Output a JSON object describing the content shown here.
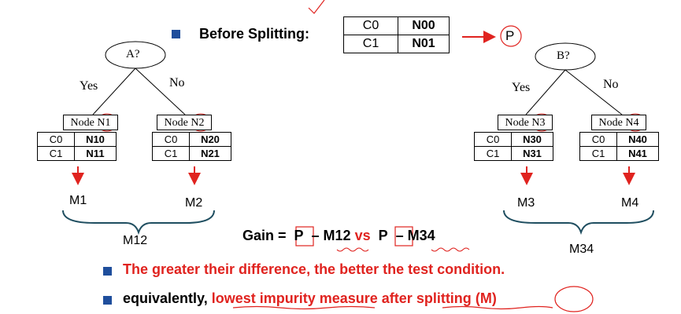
{
  "before": {
    "label": "Before Splitting:",
    "table": [
      [
        "C0",
        "N00"
      ],
      [
        "C1",
        "N01"
      ]
    ],
    "parent": "P"
  },
  "tree_a": {
    "root": "A?",
    "yes": "Yes",
    "no": "No",
    "left_node": "Node N1",
    "right_node": "Node N2",
    "left_table": [
      [
        "C0",
        "N10"
      ],
      [
        "C1",
        "N11"
      ]
    ],
    "right_table": [
      [
        "C0",
        "N20"
      ],
      [
        "C1",
        "N21"
      ]
    ],
    "m_left": "M1",
    "m_right": "M2",
    "combined": "M12"
  },
  "tree_b": {
    "root": "B?",
    "yes": "Yes",
    "no": "No",
    "left_node": "Node N3",
    "right_node": "Node N4",
    "left_table": [
      [
        "C0",
        "N30"
      ],
      [
        "C1",
        "N31"
      ]
    ],
    "right_table": [
      [
        "C0",
        "N40"
      ],
      [
        "C1",
        "N41"
      ]
    ],
    "m_left": "M3",
    "m_right": "M4",
    "combined": "M34"
  },
  "gain": {
    "prefix": "Gain = ",
    "p1": "P",
    "term1": " – M12 ",
    "vs": "vs",
    "p2": "P",
    "term2": " – M34"
  },
  "bullets": {
    "b1": "The greater their difference, the better the test condition.",
    "b2_pre": "equivalently, ",
    "b2_red1": "lowest impurity measure",
    "b2_mid": " ",
    "b2_red2": "after splitting",
    "b2_space": " ",
    "b2_end": "(M)"
  },
  "colors": {
    "accent_red": "#e0231f",
    "bullet_blue": "#1f4e9c"
  }
}
